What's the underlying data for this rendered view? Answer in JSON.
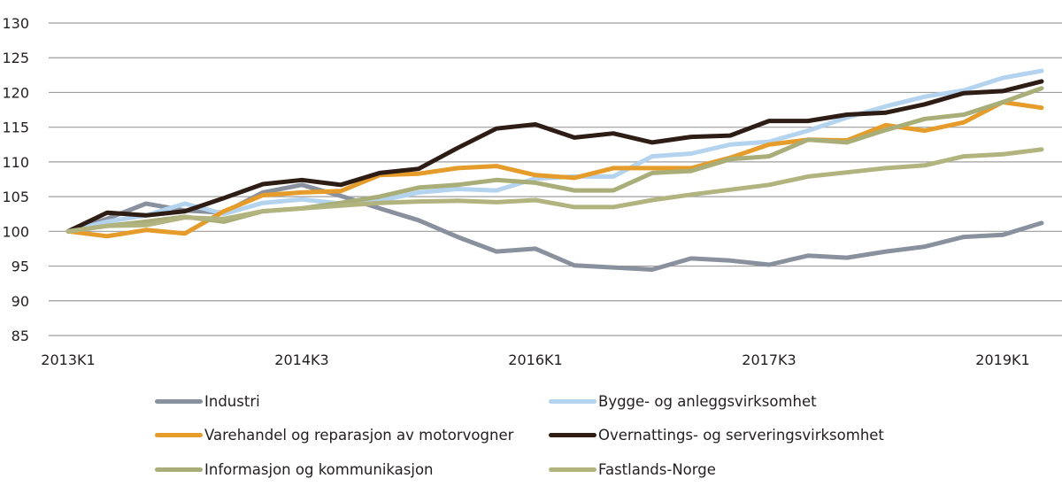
{
  "chart_data": {
    "type": "line",
    "title": "",
    "xlabel": "",
    "ylabel": "",
    "ylim": [
      85,
      130
    ],
    "yticks": [
      85,
      90,
      95,
      100,
      105,
      110,
      115,
      120,
      125,
      130
    ],
    "grid": true,
    "legend_position": "bottom",
    "x": [
      "2013K1",
      "2013K2",
      "2013K3",
      "2013K4",
      "2014K1",
      "2014K2",
      "2014K3",
      "2014K4",
      "2015K1",
      "2015K2",
      "2015K3",
      "2015K4",
      "2016K1",
      "2016K2",
      "2016K3",
      "2016K4",
      "2017K1",
      "2017K2",
      "2017K3",
      "2017K4",
      "2018K1",
      "2018K2",
      "2018K3",
      "2018K4",
      "2019K1",
      "2019K2"
    ],
    "xtick_labels": [
      "2013K1",
      "2014K3",
      "2016K1",
      "2017K3",
      "2019K1"
    ],
    "series": [
      {
        "name": "Industri",
        "color": "#8a919e",
        "values": [
          100,
          101.8,
          104.0,
          103.0,
          102.7,
          105.6,
          106.7,
          105.1,
          103.3,
          101.6,
          99.2,
          97.1,
          97.5,
          95.1,
          94.8,
          94.5,
          96.1,
          95.8,
          95.2,
          96.5,
          96.2,
          97.1,
          97.8,
          99.2,
          99.5,
          101.2
        ]
      },
      {
        "name": "Bygge- og anleggsvirksomhet",
        "color": "#b3d3ee",
        "values": [
          100,
          101.4,
          102.3,
          104.0,
          102.5,
          104.1,
          104.6,
          104.0,
          104.4,
          105.6,
          106.1,
          105.9,
          107.6,
          107.9,
          107.9,
          110.8,
          111.2,
          112.5,
          112.9,
          114.5,
          116.4,
          118.0,
          119.4,
          120.3,
          122.1,
          123.1
        ]
      },
      {
        "name": "Varehandel og reparasjon av motorvogner",
        "color": "#e59c2a",
        "values": [
          100,
          99.3,
          100.2,
          99.7,
          102.9,
          105.2,
          105.6,
          105.8,
          108.1,
          108.3,
          109.1,
          109.4,
          108.1,
          107.7,
          109.1,
          109.1,
          109.1,
          110.6,
          112.5,
          113.2,
          113.1,
          115.3,
          114.5,
          115.7,
          118.6,
          117.8
        ]
      },
      {
        "name": "Overnattings- og serveringsvirksomhet",
        "color": "#2e1d15",
        "values": [
          100,
          102.7,
          102.3,
          102.9,
          104.8,
          106.8,
          107.4,
          106.7,
          108.4,
          109.0,
          112.0,
          114.8,
          115.4,
          113.5,
          114.1,
          112.8,
          113.6,
          113.8,
          115.9,
          115.9,
          116.8,
          117.1,
          118.3,
          119.9,
          120.2,
          121.6
        ]
      },
      {
        "name": "Informasjon og kommunikasjon",
        "color": "#a9ae79",
        "values": [
          100,
          100.8,
          101.4,
          102.1,
          101.4,
          102.9,
          103.3,
          104.1,
          105.0,
          106.3,
          106.7,
          107.4,
          107.0,
          105.9,
          105.9,
          108.4,
          108.7,
          110.4,
          110.8,
          113.2,
          112.8,
          114.6,
          116.2,
          116.8,
          118.6,
          120.6
        ]
      },
      {
        "name": "Fastlands-Norge",
        "color": "#b2b47f",
        "values": [
          100,
          100.8,
          100.9,
          102.0,
          101.8,
          102.9,
          103.3,
          103.7,
          104.1,
          104.3,
          104.4,
          104.2,
          104.5,
          103.5,
          103.5,
          104.5,
          105.3,
          106.0,
          106.7,
          107.9,
          108.5,
          109.1,
          109.5,
          110.8,
          111.1,
          111.8
        ]
      }
    ]
  },
  "legend": [
    {
      "label": "Industri",
      "color": "#8a919e"
    },
    {
      "label": "Bygge- og anleggsvirksomhet",
      "color": "#b3d3ee"
    },
    {
      "label": "Varehandel og reparasjon av motorvogner",
      "color": "#e59c2a"
    },
    {
      "label": "Overnattings- og serveringsvirksomhet",
      "color": "#2e1d15"
    },
    {
      "label": "Informasjon og kommunikasjon",
      "color": "#a9ae79"
    },
    {
      "label": "Fastlands-Norge",
      "color": "#b2b47f"
    }
  ]
}
